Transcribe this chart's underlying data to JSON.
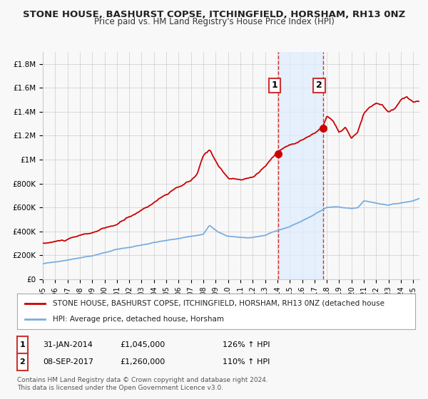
{
  "title": "STONE HOUSE, BASHURST COPSE, ITCHINGFIELD, HORSHAM, RH13 0NZ",
  "subtitle": "Price paid vs. HM Land Registry's House Price Index (HPI)",
  "ylabel_ticks": [
    "£0",
    "£200K",
    "£400K",
    "£600K",
    "£800K",
    "£1M",
    "£1.2M",
    "£1.4M",
    "£1.6M",
    "£1.8M"
  ],
  "ytick_vals": [
    0,
    200000,
    400000,
    600000,
    800000,
    1000000,
    1200000,
    1400000,
    1600000,
    1800000
  ],
  "ylim": [
    0,
    1900000
  ],
  "xlim_start": 1995,
  "xlim_end": 2025.5,
  "sale1_date_x": 2014.08,
  "sale1_price": 1045000,
  "sale2_date_x": 2017.69,
  "sale2_price": 1260000,
  "legend_label_red": "STONE HOUSE, BASHURST COPSE, ITCHINGFIELD, HORSHAM, RH13 0NZ (detached house",
  "legend_label_blue": "HPI: Average price, detached house, Horsham",
  "footer": "Contains HM Land Registry data © Crown copyright and database right 2024.\nThis data is licensed under the Open Government Licence v3.0.",
  "red_color": "#cc0000",
  "blue_color": "#7aade0",
  "shaded_color": "#ddeeff",
  "background_color": "#f8f8f8",
  "grid_color": "#cccccc",
  "title_fontsize": 9.5,
  "subtitle_fontsize": 8.5,
  "tick_fontsize": 7.5,
  "legend_fontsize": 7.5,
  "ann_fontsize": 8
}
